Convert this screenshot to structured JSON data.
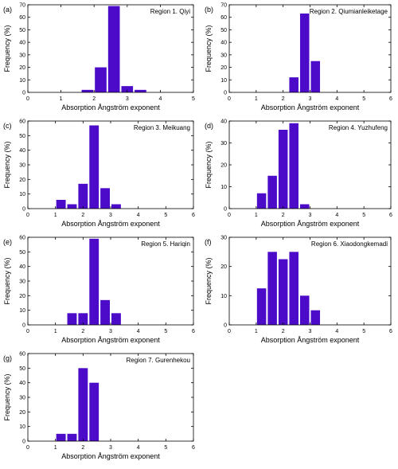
{
  "figure": {
    "bar_color": "#4b0bc8",
    "axis_color": "#000000"
  },
  "chart_data": [
    {
      "type": "bar",
      "panel_label": "(a)",
      "region": "Region 1. Qiyi",
      "xlabel": "Absorption  Ångström exponent",
      "ylabel": "Frequency (%)",
      "xlim": [
        0,
        5
      ],
      "ylim": [
        0,
        70
      ],
      "xticks": [
        0,
        1,
        2,
        3,
        4,
        5
      ],
      "yticks": [
        0,
        10,
        20,
        30,
        40,
        50,
        60,
        70
      ],
      "bin_width": 0.4,
      "x": [
        1.8,
        2.2,
        2.6,
        3.0,
        3.4
      ],
      "values": [
        2,
        20,
        69,
        5,
        2
      ]
    },
    {
      "type": "bar",
      "panel_label": "(b)",
      "region": "Region 2. Qiumianleiketage",
      "xlabel": "Absorption Ångström exponent",
      "ylabel": "Frequency (%)",
      "xlim": [
        0,
        6
      ],
      "ylim": [
        0,
        70
      ],
      "xticks": [
        0,
        1,
        2,
        3,
        4,
        5,
        6
      ],
      "yticks": [
        0,
        10,
        20,
        30,
        40,
        50,
        60,
        70
      ],
      "bin_width": 0.4,
      "x": [
        2.4,
        2.8,
        3.2
      ],
      "values": [
        12,
        63,
        25
      ]
    },
    {
      "type": "bar",
      "panel_label": "(c)",
      "region": "Region 3. Meikuang",
      "xlabel": "Absorption Ångström exponent",
      "ylabel": "Frequency (%)",
      "xlim": [
        0,
        6
      ],
      "ylim": [
        0,
        60
      ],
      "xticks": [
        0,
        1,
        2,
        3,
        4,
        5,
        6
      ],
      "yticks": [
        0,
        10,
        20,
        30,
        40,
        50,
        60
      ],
      "bin_width": 0.4,
      "x": [
        1.2,
        1.6,
        2.0,
        2.4,
        2.8,
        3.2,
        3.6
      ],
      "values": [
        6,
        3,
        17,
        57,
        14,
        3,
        0
      ]
    },
    {
      "type": "bar",
      "panel_label": "(d)",
      "region": "Region 4. Yuzhufeng",
      "xlabel": "Absorption Ångström exponent",
      "ylabel": "Frequency (%)",
      "xlim": [
        0,
        6
      ],
      "ylim": [
        0,
        40
      ],
      "xticks": [
        0,
        1,
        2,
        3,
        4,
        5,
        6
      ],
      "yticks": [
        0,
        10,
        20,
        30,
        40
      ],
      "bin_width": 0.4,
      "x": [
        1.2,
        1.6,
        2.0,
        2.4,
        2.8
      ],
      "values": [
        7,
        15,
        36,
        39,
        2
      ]
    },
    {
      "type": "bar",
      "panel_label": "(e)",
      "region": "Region 5. Hariqin",
      "xlabel": "Absorption Ångström exponent",
      "ylabel": "Frequency (%)",
      "xlim": [
        0,
        6
      ],
      "ylim": [
        0,
        60
      ],
      "xticks": [
        0,
        1,
        2,
        3,
        4,
        5,
        6
      ],
      "yticks": [
        0,
        10,
        20,
        30,
        40,
        50,
        60
      ],
      "bin_width": 0.4,
      "x": [
        1.6,
        2.0,
        2.4,
        2.8,
        3.2
      ],
      "values": [
        8,
        8,
        59,
        17,
        8
      ]
    },
    {
      "type": "bar",
      "panel_label": "(f)",
      "region": "Region 6. Xiaodongkemadi",
      "xlabel": "Absorption Ångström exponent",
      "ylabel": "Frequency (%)",
      "xlim": [
        0,
        6
      ],
      "ylim": [
        0,
        30
      ],
      "xticks": [
        0,
        1,
        2,
        3,
        4,
        5,
        6
      ],
      "yticks": [
        0,
        10,
        20,
        30
      ],
      "bin_width": 0.4,
      "x": [
        1.2,
        1.6,
        2.0,
        2.4,
        2.8,
        3.2
      ],
      "values": [
        12.5,
        25,
        22.5,
        25,
        10,
        5
      ]
    },
    {
      "type": "bar",
      "panel_label": "(g)",
      "region": "Region 7. Gurenhekou",
      "xlabel": "Absorption Ångström exponent",
      "ylabel": "Frequency (%)",
      "xlim": [
        0,
        6
      ],
      "ylim": [
        0,
        60
      ],
      "xticks": [
        0,
        1,
        2,
        3,
        4,
        5,
        6
      ],
      "yticks": [
        0,
        10,
        20,
        30,
        40,
        50,
        60
      ],
      "bin_width": 0.4,
      "x": [
        1.2,
        1.6,
        2.0,
        2.4
      ],
      "values": [
        5,
        5,
        50,
        40
      ]
    }
  ]
}
